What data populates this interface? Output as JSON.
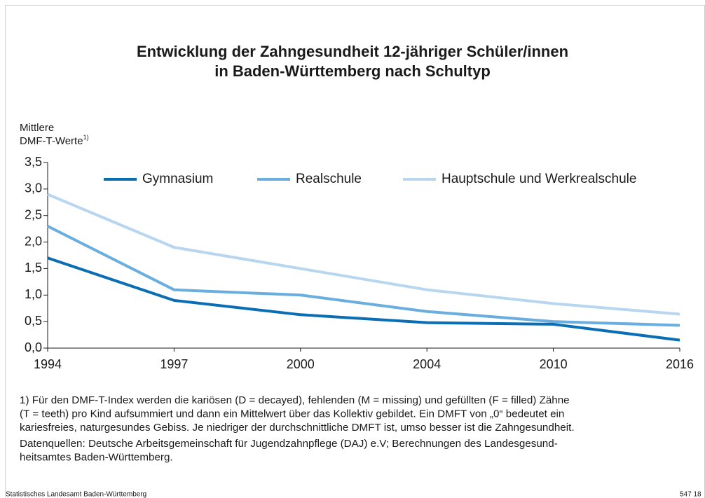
{
  "chart_data": {
    "type": "line",
    "title": [
      "Entwicklung der Zahngesundheit 12-jähriger Schüler/innen",
      "in Baden-Württemberg nach Schultyp"
    ],
    "y_label": [
      "Mittlere",
      "DMF-T-Werte"
    ],
    "y_label_note": "1)",
    "categories": [
      "1994",
      "1997",
      "2000",
      "2004",
      "2010",
      "2016"
    ],
    "series": [
      {
        "name": "Gymnasium",
        "color": "#0a6eb4",
        "values": [
          1.7,
          0.9,
          0.63,
          0.48,
          0.45,
          0.15
        ]
      },
      {
        "name": "Realschule",
        "color": "#6aaee0",
        "values": [
          2.3,
          1.1,
          1.0,
          0.69,
          0.5,
          0.43
        ]
      },
      {
        "name": "Hauptschule und Werkrealschule",
        "color": "#b8d6ef",
        "values": [
          2.9,
          1.9,
          1.5,
          1.1,
          0.84,
          0.64
        ]
      }
    ],
    "ylim": [
      0,
      3.5
    ],
    "yticks": [
      {
        "value": 0,
        "label": "0,0"
      },
      {
        "value": 0.5,
        "label": "0,5"
      },
      {
        "value": 1,
        "label": "1,0"
      },
      {
        "value": 1.5,
        "label": "1,5"
      },
      {
        "value": 2,
        "label": "2,0"
      },
      {
        "value": 2.5,
        "label": "2,5"
      },
      {
        "value": 3,
        "label": "3,0"
      },
      {
        "value": 3.5,
        "label": "3,5"
      }
    ],
    "legend": "top",
    "footnote": [
      "1) Für den DMF-T-Index werden die kariösen (D = decayed), fehlenden (M = missing) und gefüllten (F = filled) Zähne",
      "(T = teeth) pro Kind aufsummiert und dann ein Mittelwert über das Kollektiv gebildet. Ein DMFT von „0“ bedeutet ein",
      "kariesfreies, naturgesundes Gebiss. Je niedriger der durchschnittliche DMFT ist, umso besser ist die Zahngesundheit."
    ],
    "sources": [
      "Datenquellen: Deutsche Arbeitsgemeinschaft für Jugendzahnpflege (DAJ) e.V; Berechnungen des Landesgesund-",
      "heitsamtes Baden-Württemberg."
    ],
    "footer_left": "Statistisches Landesamt Baden-Württemberg",
    "footer_right": "547 18"
  }
}
